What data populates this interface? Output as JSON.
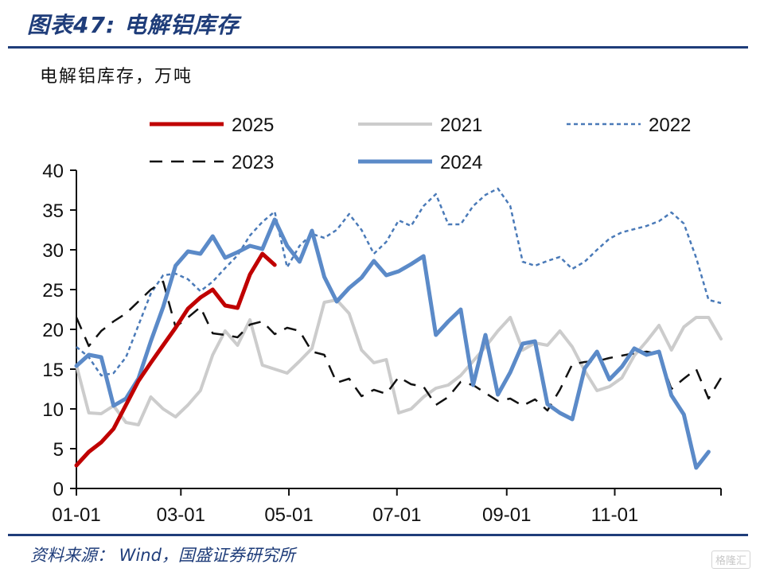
{
  "header": {
    "title": "图表47:  电解铝库存",
    "unit": "电解铝库存，万吨"
  },
  "footer": {
    "source": "资料来源： Wind，国盛证券研究所",
    "watermark": "格隆汇"
  },
  "chart_data": {
    "type": "line",
    "title": "",
    "xlabel": "",
    "ylabel": "电解铝库存，万吨",
    "x_ticks": [
      "01-01",
      "03-01",
      "05-01",
      "07-01",
      "09-01",
      "11-01"
    ],
    "y_ticks": [
      0,
      5,
      10,
      15,
      20,
      25,
      30,
      35,
      40
    ],
    "ylim": [
      0,
      40
    ],
    "xlim_days": [
      0,
      364
    ],
    "grid": false,
    "legend_position": "top",
    "series": [
      {
        "name": "2025",
        "color": "#c00000",
        "style": "solid",
        "width": 5,
        "points": [
          [
            0,
            2.9
          ],
          [
            7,
            4.6
          ],
          [
            14,
            5.8
          ],
          [
            21,
            7.5
          ],
          [
            28,
            10.5
          ],
          [
            35,
            13.5
          ],
          [
            42,
            15.8
          ],
          [
            49,
            18.0
          ],
          [
            56,
            20.2
          ],
          [
            63,
            22.6
          ],
          [
            70,
            24.0
          ],
          [
            77,
            25.0
          ],
          [
            84,
            23.0
          ],
          [
            91,
            22.7
          ],
          [
            98,
            26.9
          ],
          [
            105,
            29.5
          ],
          [
            112,
            28.1
          ]
        ]
      },
      {
        "name": "2021",
        "color": "#cccccc",
        "style": "solid",
        "width": 4,
        "points": [
          [
            0,
            15.5
          ],
          [
            7,
            9.5
          ],
          [
            14,
            9.4
          ],
          [
            21,
            10.4
          ],
          [
            28,
            8.3
          ],
          [
            35,
            8.0
          ],
          [
            42,
            11.5
          ],
          [
            49,
            10.0
          ],
          [
            56,
            9.0
          ],
          [
            63,
            10.5
          ],
          [
            70,
            12.3
          ],
          [
            77,
            16.8
          ],
          [
            84,
            19.8
          ],
          [
            91,
            18.0
          ],
          [
            98,
            21.2
          ],
          [
            105,
            15.5
          ],
          [
            112,
            15.0
          ],
          [
            119,
            14.5
          ],
          [
            126,
            16.0
          ],
          [
            133,
            17.6
          ],
          [
            140,
            23.4
          ],
          [
            147,
            23.7
          ],
          [
            154,
            22.0
          ],
          [
            161,
            17.4
          ],
          [
            168,
            15.8
          ],
          [
            175,
            16.2
          ],
          [
            182,
            9.5
          ],
          [
            189,
            10.0
          ],
          [
            196,
            11.5
          ],
          [
            203,
            12.6
          ],
          [
            210,
            13.0
          ],
          [
            217,
            14.2
          ],
          [
            224,
            16.0
          ],
          [
            231,
            17.8
          ],
          [
            238,
            19.8
          ],
          [
            245,
            21.5
          ],
          [
            252,
            17.4
          ],
          [
            259,
            18.3
          ],
          [
            266,
            18.0
          ],
          [
            273,
            19.8
          ],
          [
            280,
            17.8
          ],
          [
            287,
            14.8
          ],
          [
            294,
            12.3
          ],
          [
            301,
            12.8
          ],
          [
            308,
            13.9
          ],
          [
            315,
            16.7
          ],
          [
            322,
            18.5
          ],
          [
            329,
            20.5
          ],
          [
            336,
            17.4
          ],
          [
            343,
            20.3
          ],
          [
            350,
            21.5
          ],
          [
            357,
            21.5
          ],
          [
            364,
            18.8
          ]
        ]
      },
      {
        "name": "2022",
        "color": "#4a7ab8",
        "style": "dotted",
        "width": 2.5,
        "points": [
          [
            0,
            17.8
          ],
          [
            7,
            16.5
          ],
          [
            14,
            14.2
          ],
          [
            21,
            14.5
          ],
          [
            28,
            16.5
          ],
          [
            35,
            20.5
          ],
          [
            42,
            24.5
          ],
          [
            49,
            26.8
          ],
          [
            56,
            27.0
          ],
          [
            63,
            26.3
          ],
          [
            70,
            24.8
          ],
          [
            77,
            26.0
          ],
          [
            84,
            27.7
          ],
          [
            91,
            29.3
          ],
          [
            98,
            31.8
          ],
          [
            105,
            33.5
          ],
          [
            112,
            34.8
          ],
          [
            119,
            27.8
          ],
          [
            126,
            30.5
          ],
          [
            133,
            32.0
          ],
          [
            140,
            31.5
          ],
          [
            147,
            32.5
          ],
          [
            154,
            34.5
          ],
          [
            161,
            32.5
          ],
          [
            168,
            29.5
          ],
          [
            175,
            31.0
          ],
          [
            182,
            33.7
          ],
          [
            189,
            33.0
          ],
          [
            196,
            35.5
          ],
          [
            203,
            37.0
          ],
          [
            210,
            33.2
          ],
          [
            217,
            33.2
          ],
          [
            224,
            35.5
          ],
          [
            231,
            36.9
          ],
          [
            238,
            37.7
          ],
          [
            245,
            35.5
          ],
          [
            252,
            28.5
          ],
          [
            259,
            28.0
          ],
          [
            266,
            28.6
          ],
          [
            273,
            29.1
          ],
          [
            280,
            27.6
          ],
          [
            287,
            28.5
          ],
          [
            294,
            30.0
          ],
          [
            301,
            31.4
          ],
          [
            308,
            32.2
          ],
          [
            315,
            32.6
          ],
          [
            322,
            33.0
          ],
          [
            329,
            33.6
          ],
          [
            336,
            34.7
          ],
          [
            343,
            33.3
          ],
          [
            350,
            29.0
          ],
          [
            357,
            23.7
          ],
          [
            364,
            23.3
          ]
        ]
      },
      {
        "name": "2023",
        "color": "#111111",
        "style": "dashed",
        "width": 2.5,
        "points": [
          [
            0,
            21.5
          ],
          [
            7,
            17.9
          ],
          [
            14,
            19.8
          ],
          [
            21,
            21.0
          ],
          [
            28,
            22.0
          ],
          [
            35,
            23.5
          ],
          [
            42,
            25.0
          ],
          [
            49,
            26.0
          ],
          [
            56,
            20.3
          ],
          [
            63,
            21.5
          ],
          [
            70,
            22.8
          ],
          [
            77,
            19.5
          ],
          [
            84,
            19.3
          ],
          [
            91,
            19.0
          ],
          [
            98,
            20.6
          ],
          [
            105,
            21.0
          ],
          [
            112,
            19.4
          ],
          [
            119,
            20.2
          ],
          [
            126,
            19.8
          ],
          [
            133,
            17.2
          ],
          [
            140,
            16.8
          ],
          [
            147,
            13.3
          ],
          [
            154,
            13.8
          ],
          [
            161,
            11.6
          ],
          [
            168,
            12.4
          ],
          [
            175,
            11.9
          ],
          [
            182,
            14.0
          ],
          [
            189,
            13.1
          ],
          [
            196,
            12.8
          ],
          [
            203,
            10.5
          ],
          [
            210,
            11.5
          ],
          [
            217,
            13.4
          ],
          [
            224,
            13.0
          ],
          [
            231,
            12.0
          ],
          [
            238,
            11.0
          ],
          [
            245,
            11.3
          ],
          [
            252,
            10.4
          ],
          [
            259,
            11.2
          ],
          [
            266,
            9.8
          ],
          [
            273,
            12.4
          ],
          [
            280,
            15.6
          ],
          [
            287,
            15.9
          ],
          [
            294,
            16.0
          ],
          [
            301,
            16.4
          ],
          [
            308,
            16.7
          ],
          [
            315,
            17.0
          ],
          [
            322,
            17.2
          ],
          [
            329,
            16.9
          ],
          [
            336,
            12.5
          ],
          [
            343,
            13.8
          ],
          [
            350,
            15.0
          ],
          [
            357,
            11.3
          ],
          [
            364,
            13.9
          ]
        ]
      },
      {
        "name": "2024",
        "color": "#5b8ac8",
        "style": "solid",
        "width": 5,
        "points": [
          [
            0,
            15.4
          ],
          [
            7,
            16.8
          ],
          [
            14,
            16.5
          ],
          [
            21,
            10.4
          ],
          [
            28,
            11.3
          ],
          [
            35,
            13.8
          ],
          [
            42,
            18.5
          ],
          [
            49,
            22.8
          ],
          [
            56,
            28.0
          ],
          [
            63,
            29.8
          ],
          [
            70,
            29.5
          ],
          [
            77,
            31.7
          ],
          [
            84,
            29.0
          ],
          [
            91,
            29.7
          ],
          [
            98,
            30.5
          ],
          [
            105,
            30.1
          ],
          [
            112,
            33.8
          ],
          [
            119,
            30.5
          ],
          [
            126,
            28.5
          ],
          [
            133,
            32.4
          ],
          [
            140,
            26.6
          ],
          [
            147,
            23.5
          ],
          [
            154,
            25.2
          ],
          [
            161,
            26.5
          ],
          [
            168,
            28.6
          ],
          [
            175,
            26.8
          ],
          [
            182,
            27.3
          ],
          [
            189,
            28.2
          ],
          [
            196,
            29.2
          ],
          [
            203,
            19.3
          ],
          [
            210,
            21.0
          ],
          [
            217,
            22.5
          ],
          [
            224,
            13.0
          ],
          [
            231,
            19.3
          ],
          [
            238,
            11.8
          ],
          [
            245,
            14.6
          ],
          [
            252,
            18.2
          ],
          [
            259,
            18.5
          ],
          [
            266,
            10.6
          ],
          [
            273,
            9.5
          ],
          [
            280,
            8.7
          ],
          [
            287,
            15.1
          ],
          [
            294,
            17.2
          ],
          [
            301,
            13.7
          ],
          [
            308,
            15.3
          ],
          [
            315,
            17.6
          ],
          [
            322,
            16.8
          ],
          [
            329,
            17.2
          ],
          [
            336,
            11.7
          ],
          [
            343,
            9.3
          ],
          [
            350,
            2.6
          ],
          [
            357,
            4.6
          ]
        ]
      }
    ]
  }
}
